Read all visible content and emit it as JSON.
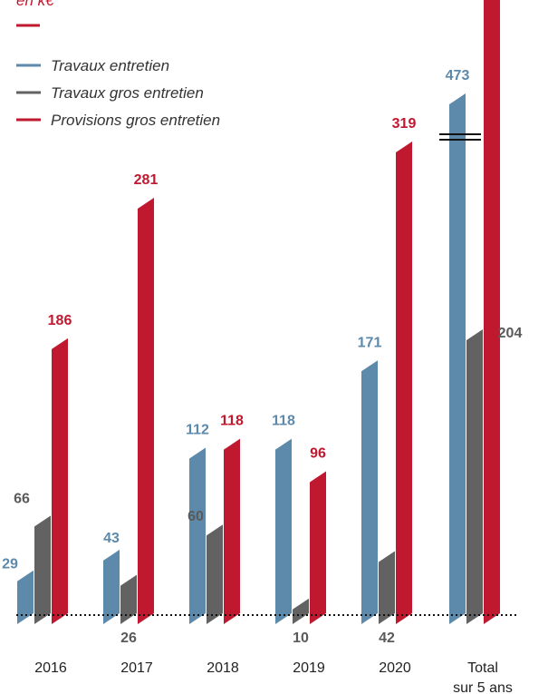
{
  "chart_data": {
    "type": "bar",
    "title": "",
    "unit": "en k€",
    "categories": [
      "2016",
      "2017",
      "2018",
      "2019",
      "2020",
      "Total\nsur 5 ans"
    ],
    "series": [
      {
        "name": "Travaux entretien",
        "values": [
          29,
          43,
          112,
          118,
          171,
          473
        ]
      },
      {
        "name": "Travaux gros entretien",
        "values": [
          66,
          26,
          60,
          10,
          42,
          204
        ]
      },
      {
        "name": "Provisions gros entretien",
        "values": [
          186,
          281,
          118,
          96,
          319,
          null
        ]
      }
    ],
    "value_labels": [
      [
        "29",
        "43",
        "112",
        "118",
        "171",
        "473"
      ],
      [
        "66",
        "26",
        "60",
        "10",
        "42",
        "204"
      ],
      [
        "186",
        "281",
        "118",
        "96",
        "319",
        ""
      ]
    ],
    "legend_position": "top-left",
    "grid": false,
    "colors": {
      "Travaux entretien": "#5d89aa",
      "Travaux gros entretien": "#626262",
      "Provisions gros entretien": "#c0182f"
    }
  }
}
